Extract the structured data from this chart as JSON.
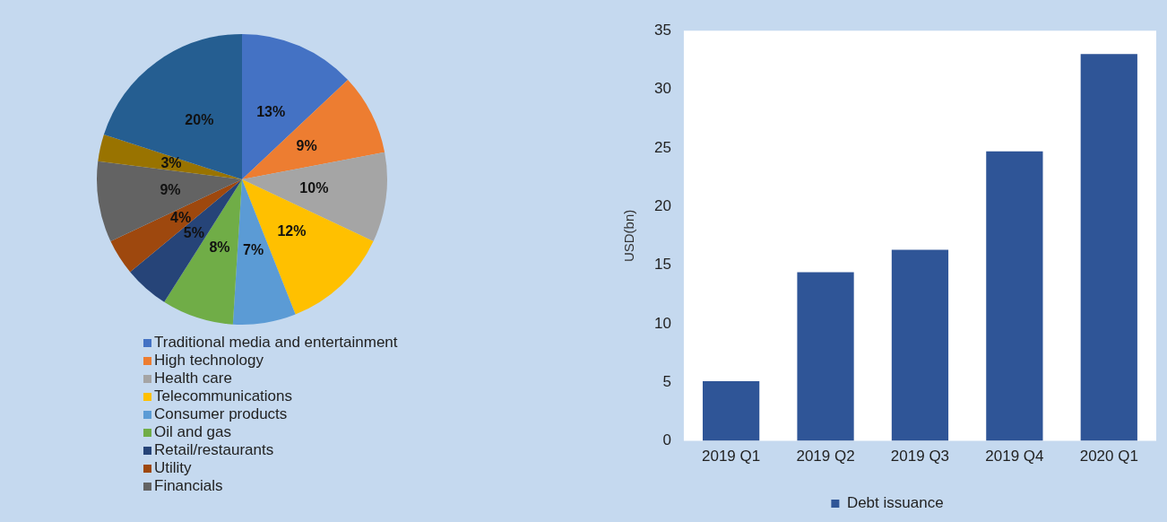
{
  "chart_data": [
    {
      "type": "pie",
      "categories": [
        "Traditional media and entertainment",
        "High technology",
        "Health care",
        "Telecommunications",
        "Consumer products",
        "Oil and gas",
        "Retail/restaurants",
        "Utility",
        "Financials",
        null,
        null
      ],
      "values": [
        13,
        9,
        10,
        12,
        7,
        8,
        5,
        4,
        9,
        3,
        20
      ],
      "value_labels": [
        "13%",
        "9%",
        "10%",
        "12%",
        "7%",
        "8%",
        "5%",
        "4%",
        "9%",
        "3%",
        "20%"
      ],
      "colors": [
        "#4472c4",
        "#ed7d31",
        "#a5a5a5",
        "#ffc000",
        "#5b9bd5",
        "#70ad47",
        "#264478",
        "#9e480e",
        "#636363",
        "#997300",
        "#255e91"
      ],
      "legend": "bottom"
    },
    {
      "type": "bar",
      "ylabel": "USD(bn)",
      "categories": [
        "2019 Q1",
        "2019 Q2",
        "2019 Q3",
        "2019 Q4",
        "2020 Q1"
      ],
      "series": [
        {
          "name": "Debt issuance",
          "color": "#2f5597",
          "values": [
            5.1,
            14.4,
            16.3,
            24.7,
            33.0
          ]
        }
      ],
      "ylim": [
        0,
        35
      ],
      "yticks": [
        0,
        5,
        10,
        15,
        20,
        25,
        30,
        35
      ],
      "grid": false,
      "legend": "bottom"
    }
  ]
}
